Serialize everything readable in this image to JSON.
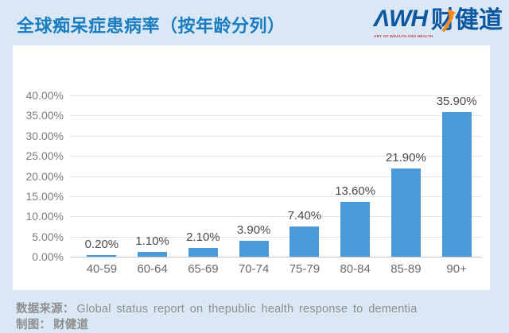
{
  "header": {
    "title": "全球痴呆症患病率（按年龄分列）",
    "logo": {
      "awh": "ΛWH",
      "cn": "财健道",
      "tagline": "ART OF WEALTH AND HEALTH",
      "arrow_icon": "orange-up-trend-arrow"
    }
  },
  "chart_data": {
    "type": "bar",
    "title": "全球痴呆症患病率（按年龄分列）",
    "categories": [
      "40-59",
      "60-64",
      "65-69",
      "70-74",
      "75-79",
      "80-84",
      "85-89",
      "90+"
    ],
    "values": [
      0.2,
      1.1,
      2.1,
      3.9,
      7.4,
      13.6,
      21.9,
      35.9
    ],
    "labels": [
      "0.20%",
      "1.10%",
      "2.10%",
      "3.90%",
      "7.40%",
      "13.60%",
      "21.90%",
      "35.90%"
    ],
    "xlabel": "",
    "ylabel": "",
    "ylim": [
      0,
      40
    ],
    "ytick_step": 5,
    "ytick_suffix": "%",
    "grid": true,
    "legend": "none",
    "bar_color": "#4a99da"
  },
  "footer": {
    "source_label": "数据来源：",
    "source_text": "Global status report on thepublic health response to dementia",
    "credit_label": "制图：",
    "credit_text": "财健道"
  },
  "colors": {
    "page_bg": "#d9e8f4",
    "card_bg": "#ffffff",
    "title_blue": "#1a7cc0",
    "logo_blue": "#0d57a0",
    "tagline_red": "#cc3a40",
    "bar_blue": "#4a99da",
    "grid_line": "#e4e4e4",
    "axis_line": "#c6c6c6",
    "axis_text": "#7c7c7c",
    "xaxis_text": "#6a6a6a",
    "label_text": "#4a4a4a",
    "footer_text": "#8e8e8e",
    "arrow_orange": "#f5891d"
  }
}
